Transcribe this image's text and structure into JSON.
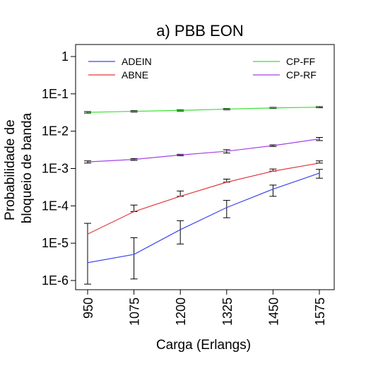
{
  "chart_data": {
    "type": "line",
    "title": "a) PBB EON",
    "xlabel": "Carga (Erlangs)",
    "ylabel_lines": [
      "Probabilidade de",
      "bloqueio de banda"
    ],
    "y_scale": "log",
    "ylim": [
      1e-06,
      1
    ],
    "y_ticks": [
      {
        "value": 1,
        "label": "1"
      },
      {
        "value": 0.1,
        "label": "1E-1"
      },
      {
        "value": 0.01,
        "label": "1E-2"
      },
      {
        "value": 0.001,
        "label": "1E-3"
      },
      {
        "value": 0.0001,
        "label": "1E-4"
      },
      {
        "value": 1e-05,
        "label": "1E-5"
      },
      {
        "value": 1e-06,
        "label": "1E-6"
      }
    ],
    "x": [
      950,
      1075,
      1200,
      1325,
      1450,
      1575
    ],
    "x_tick_labels": [
      "950",
      "1075",
      "1200",
      "1325",
      "1450",
      "1575"
    ],
    "grid": false,
    "legend_placement": "top",
    "series": [
      {
        "name": "ADEIN",
        "color": "#3b45ea",
        "values": [
          3e-06,
          5e-06,
          2.3e-05,
          9e-05,
          0.00028,
          0.00075
        ],
        "error_low": [
          8e-07,
          1.1e-06,
          9.5e-06,
          4.8e-05,
          0.00018,
          0.00055
        ],
        "error_high": [
          3.4e-05,
          1.4e-05,
          4e-05,
          0.00014,
          0.00036,
          0.00095
        ]
      },
      {
        "name": "ABNE",
        "color": "#e0393c",
        "values": [
          1.75e-05,
          7e-05,
          0.00018,
          0.00043,
          0.00085,
          0.0014
        ],
        "error_low": null,
        "error_high": [
          null,
          0.000105,
          0.00025,
          0.00052,
          0.00097,
          0.0016
        ]
      },
      {
        "name": "CP-FF",
        "color": "#3adf34",
        "values": [
          0.032,
          0.034,
          0.036,
          0.039,
          0.042,
          0.044
        ],
        "error_low": [
          0.0305,
          0.0325,
          0.0345,
          0.0375,
          0.0405,
          0.0425
        ],
        "error_high": [
          0.0335,
          0.0355,
          0.0375,
          0.0405,
          0.0435,
          0.0455
        ]
      },
      {
        "name": "CP-RF",
        "color": "#a443e2",
        "values": [
          0.0015,
          0.00175,
          0.0023,
          0.0029,
          0.0041,
          0.0062
        ],
        "error_low": [
          0.0014,
          0.00165,
          0.0022,
          0.0026,
          0.0039,
          0.0056
        ],
        "error_high": [
          0.0016,
          0.00185,
          0.0024,
          0.0032,
          0.0043,
          0.0068
        ]
      }
    ]
  }
}
